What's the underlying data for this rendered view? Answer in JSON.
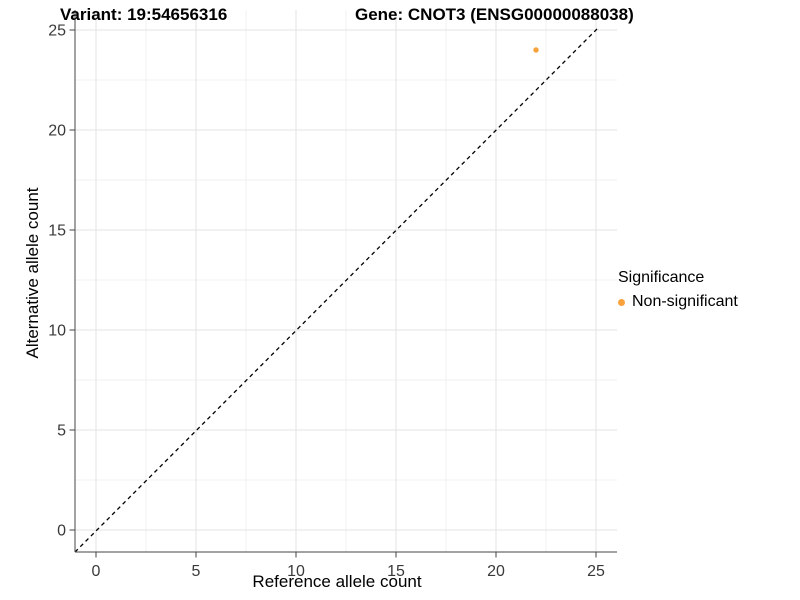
{
  "chart_data": {
    "type": "scatter",
    "title_left": "Variant: 19:54656316",
    "title_right": "Gene: CNOT3 (ENSG00000088038)",
    "xlabel": "Reference allele count",
    "ylabel": "Alternative allele count",
    "xlim": [
      -1.1,
      25.1
    ],
    "ylim": [
      -1.1,
      25.1
    ],
    "x_ticks": [
      0,
      5,
      10,
      15,
      20,
      25
    ],
    "y_ticks": [
      0,
      5,
      10,
      15,
      20,
      25
    ],
    "grid": "major and minor, light gray on white panel",
    "series": [
      {
        "name": "Non-significant",
        "color": "#F9A23C",
        "points": [
          {
            "x": 22,
            "y": 24
          }
        ]
      }
    ],
    "reference_line": {
      "slope": 1,
      "intercept": 0,
      "style": "dashed",
      "color": "#000000",
      "max_value": 25.05
    },
    "legend": {
      "title": "Significance",
      "position": "right",
      "items": [
        {
          "label": "Non-significant",
          "color": "#F9A23C"
        }
      ]
    },
    "colors": {
      "grid_major": "#E3E3E3",
      "grid_minor": "#F1F1F1",
      "axis_line": "#464646",
      "tick_label": "#3A3A3A",
      "background": "#FFFFFF"
    }
  }
}
